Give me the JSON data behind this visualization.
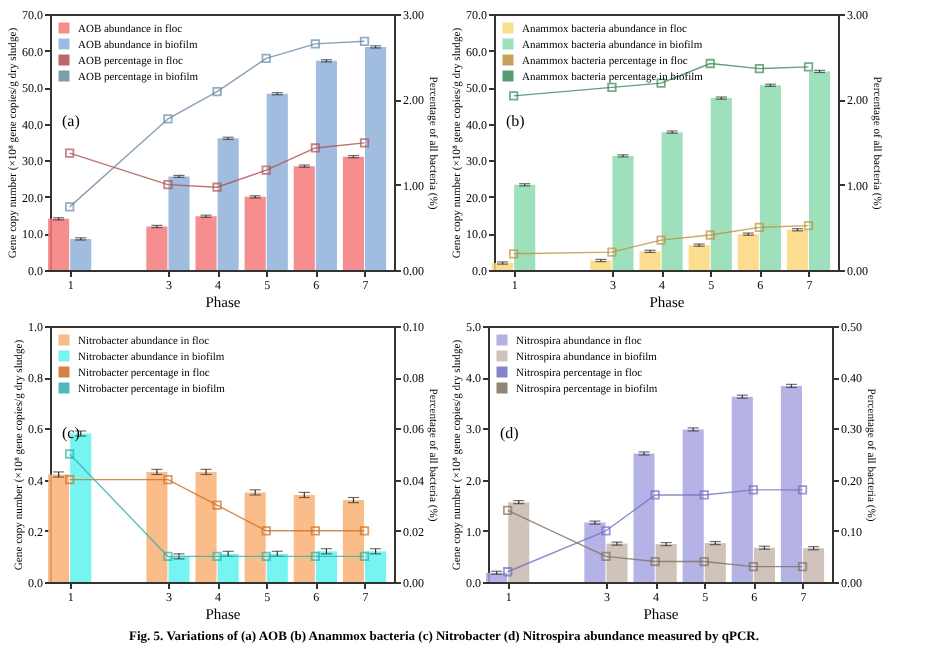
{
  "chart_data": [
    {
      "type": "bar",
      "x": [
        1,
        3,
        4,
        5,
        6,
        7
      ],
      "xlim": [
        0.6,
        7.6
      ],
      "xticks": [
        1,
        3,
        4,
        5,
        6,
        7
      ],
      "xlabel": "Phase",
      "ylabel": "Gene copy number (×10⁸ gene copies/g dry sludge)",
      "y2label": "Percentage of all bacteria (%)",
      "ylim": [
        0,
        70
      ],
      "yticks": [
        {
          "value": 0,
          "label": "0.0"
        },
        {
          "value": 10,
          "label": "10.0"
        },
        {
          "value": 20,
          "label": "20.0"
        },
        {
          "value": 30,
          "label": "30.0"
        },
        {
          "value": 40,
          "label": "40.0"
        },
        {
          "value": 50,
          "label": "50.0"
        },
        {
          "value": 60,
          "label": "60.0"
        },
        {
          "value": 70,
          "label": "70.0"
        }
      ],
      "y2lim": [
        0,
        3
      ],
      "y2ticks": [
        {
          "value": 0,
          "label": "0.00"
        },
        {
          "value": 1,
          "label": "1.00"
        },
        {
          "value": 2,
          "label": "2.00"
        },
        {
          "value": 3,
          "label": "3.00"
        }
      ],
      "legend": "top left",
      "marker": "square",
      "line_style": "solid",
      "annotations": [
        "(a)"
      ],
      "series": [
        {
          "name": "AOB abundance in floc",
          "color": "#f47a7c",
          "values": [
            14.0,
            11.9,
            14.7,
            20.0,
            28.4,
            31.0
          ],
          "errors": [
            0.3,
            0.3,
            0.3,
            0.3,
            0.3,
            0.3
          ]
        },
        {
          "name": "AOB abundance in biofilm",
          "color": "#8fb0d8",
          "values": [
            8.5,
            25.6,
            36.0,
            48.2,
            57.2,
            61.0
          ],
          "errors": [
            0.3,
            0.3,
            0.3,
            0.3,
            0.3,
            0.3
          ]
        },
        {
          "name": "AOB percentage in floc",
          "type": "line",
          "axis": "y2",
          "color": "#b05050",
          "values": [
            1.37,
            1.0,
            0.97,
            1.17,
            1.43,
            1.49
          ]
        },
        {
          "name": "AOB percentage in biofilm",
          "type": "line",
          "axis": "y2",
          "color": "#6a8aa8",
          "values": [
            0.74,
            1.77,
            2.09,
            2.48,
            2.65,
            2.68
          ]
        }
      ]
    },
    {
      "type": "bar",
      "x": [
        1,
        3,
        4,
        5,
        6,
        7
      ],
      "xlim": [
        0.6,
        7.6
      ],
      "xticks": [
        1,
        3,
        4,
        5,
        6,
        7
      ],
      "xlabel": "Phase",
      "ylabel": "Gene copy number (×10⁸ gene copies/g dry sludge)",
      "y2label": "Percentage of all bacteria (%)",
      "ylim": [
        0,
        70
      ],
      "yticks": [
        {
          "value": 0,
          "label": "0.0"
        },
        {
          "value": 10,
          "label": "10.0"
        },
        {
          "value": 20,
          "label": "20.0"
        },
        {
          "value": 30,
          "label": "30.0"
        },
        {
          "value": 40,
          "label": "40.0"
        },
        {
          "value": 50,
          "label": "50.0"
        },
        {
          "value": 60,
          "label": "60.0"
        },
        {
          "value": 70,
          "label": "70.0"
        }
      ],
      "y2lim": [
        0,
        3
      ],
      "y2ticks": [
        {
          "value": 0,
          "label": "0.00"
        },
        {
          "value": 1,
          "label": "1.00"
        },
        {
          "value": 2,
          "label": "2.00"
        },
        {
          "value": 3,
          "label": "3.00"
        }
      ],
      "legend": "top left",
      "marker": "square",
      "line_style": "solid",
      "annotations": [
        "(b)"
      ],
      "series": [
        {
          "name": "Anammox bacteria abundance in floc",
          "color": "#fcd67a",
          "values": [
            1.9,
            2.6,
            5.1,
            6.8,
            9.8,
            11.0
          ],
          "errors": [
            0.3,
            0.3,
            0.3,
            0.3,
            0.3,
            0.3
          ]
        },
        {
          "name": "Anammox bacteria abundance in biofilm",
          "color": "#8ddbb0",
          "values": [
            23.3,
            31.2,
            37.7,
            47.0,
            50.5,
            54.3
          ],
          "errors": [
            0.3,
            0.3,
            0.3,
            0.3,
            0.3,
            0.3
          ]
        },
        {
          "name": "Anammox bacteria percentage in floc",
          "type": "line",
          "axis": "y2",
          "color": "#c09040",
          "values": [
            0.19,
            0.21,
            0.35,
            0.41,
            0.5,
            0.52
          ]
        },
        {
          "name": "Anammox bacteria percentage in biofilm",
          "type": "line",
          "axis": "y2",
          "color": "#3a8a5a",
          "values": [
            2.04,
            2.14,
            2.19,
            2.42,
            2.36,
            2.38
          ]
        }
      ]
    },
    {
      "type": "bar",
      "x": [
        1,
        3,
        4,
        5,
        6,
        7
      ],
      "xlim": [
        0.6,
        7.6
      ],
      "xticks": [
        1,
        3,
        4,
        5,
        6,
        7
      ],
      "xlabel": "Phase",
      "ylabel": "Gene copy number (×10⁸ gene copies/g dry sludge)",
      "y2label": "Percentage of all bacteria (%)",
      "ylim": [
        0,
        1
      ],
      "yticks": [
        {
          "value": 0,
          "label": "0.0"
        },
        0.2,
        0.4,
        0.6,
        0.8,
        {
          "value": 1,
          "label": "1.0"
        }
      ],
      "y2lim": [
        0,
        0.1
      ],
      "y2ticks": [
        {
          "value": 0,
          "label": "0.00"
        },
        {
          "value": 0.02,
          "label": "0.02"
        },
        {
          "value": 0.04,
          "label": "0.04"
        },
        {
          "value": 0.06,
          "label": "0.06"
        },
        {
          "value": 0.08,
          "label": "0.08"
        },
        {
          "value": 0.1,
          "label": "0.10"
        }
      ],
      "legend": "top left",
      "marker": "square",
      "line_style": "solid",
      "annotations": [
        "(c)"
      ],
      "series": [
        {
          "name": "Nitrobacter abundance in floc",
          "color": "#f9b074",
          "values": [
            0.42,
            0.43,
            0.43,
            0.35,
            0.34,
            0.32
          ],
          "errors": [
            0.01,
            0.01,
            0.01,
            0.01,
            0.01,
            0.01
          ]
        },
        {
          "name": "Nitrobacter abundance in biofilm",
          "color": "#5ef2ee",
          "values": [
            0.58,
            0.1,
            0.11,
            0.11,
            0.12,
            0.12
          ],
          "errors": [
            0.01,
            0.01,
            0.01,
            0.01,
            0.01,
            0.01
          ]
        },
        {
          "name": "Nitrobacter percentage in floc",
          "type": "line",
          "axis": "y2",
          "color": "#d07020",
          "values": [
            0.04,
            0.04,
            0.03,
            0.02,
            0.02,
            0.02
          ]
        },
        {
          "name": "Nitrobacter percentage in biofilm",
          "type": "line",
          "axis": "y2",
          "color": "#30b0b0",
          "values": [
            0.05,
            0.01,
            0.01,
            0.01,
            0.01,
            0.01
          ]
        }
      ]
    },
    {
      "type": "bar",
      "x": [
        1,
        3,
        4,
        5,
        6,
        7
      ],
      "xlim": [
        0.6,
        7.6
      ],
      "xticks": [
        1,
        3,
        4,
        5,
        6,
        7
      ],
      "xlabel": "Phase",
      "ylabel": "Gene copy number (×10⁸ gene copies/g dry sludge)",
      "y2label": "Percentage of all bacteria (%)",
      "ylim": [
        0,
        5
      ],
      "yticks": [
        {
          "value": 0,
          "label": "0.0"
        },
        {
          "value": 1,
          "label": "1.0"
        },
        {
          "value": 2,
          "label": "2.0"
        },
        {
          "value": 3,
          "label": "3.0"
        },
        {
          "value": 4,
          "label": "4.0"
        },
        {
          "value": 5,
          "label": "5.0"
        }
      ],
      "y2lim": [
        0,
        0.5
      ],
      "y2ticks": [
        {
          "value": 0,
          "label": "0.00"
        },
        {
          "value": 0.1,
          "label": "0.10"
        },
        {
          "value": 0.2,
          "label": "0.20"
        },
        {
          "value": 0.3,
          "label": "0.30"
        },
        {
          "value": 0.4,
          "label": "0.40"
        },
        {
          "value": 0.5,
          "label": "0.50"
        }
      ],
      "legend": "top left",
      "marker": "square",
      "line_style": "solid",
      "annotations": [
        "(d)",
        "Fig. 5. Variations of (a) AOB (b) Anammox bacteria (c) Nitrobacter (d) Nitrospira abundance measured by qPCR."
      ],
      "series": [
        {
          "name": "Nitrospira abundance in floc",
          "color": "#a8a4e0",
          "values": [
            0.18,
            1.16,
            2.51,
            2.98,
            3.62,
            3.83
          ],
          "errors": [
            0.03,
            0.03,
            0.03,
            0.03,
            0.03,
            0.03
          ]
        },
        {
          "name": "Nitrospira abundance in biofilm",
          "color": "#c8b8b0",
          "values": [
            1.56,
            0.75,
            0.74,
            0.76,
            0.67,
            0.66
          ],
          "errors": [
            0.03,
            0.03,
            0.03,
            0.03,
            0.03,
            0.03
          ]
        },
        {
          "name": "Nitrospira percentage in floc",
          "type": "line",
          "axis": "y2",
          "color": "#7070c0",
          "values": [
            0.02,
            0.1,
            0.17,
            0.17,
            0.18,
            0.18
          ]
        },
        {
          "name": "Nitrospira percentage in biofilm",
          "type": "line",
          "axis": "y2",
          "color": "#807060",
          "values": [
            0.14,
            0.05,
            0.04,
            0.04,
            0.03,
            0.03
          ]
        }
      ]
    }
  ]
}
